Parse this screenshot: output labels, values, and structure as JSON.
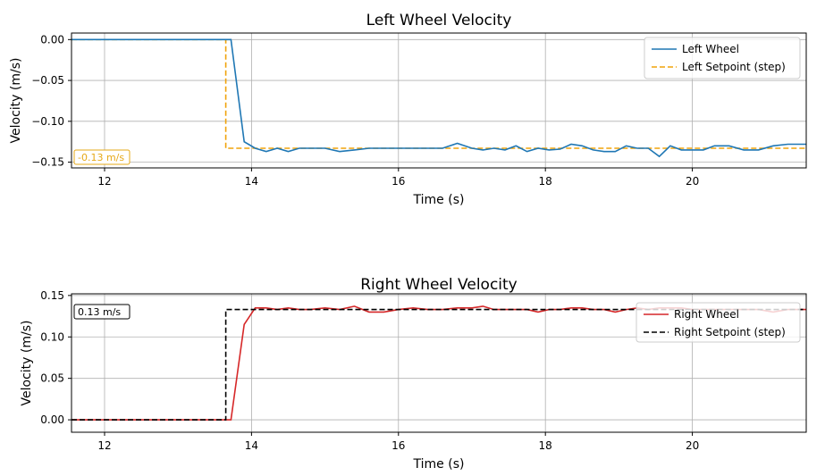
{
  "chart_data": [
    {
      "type": "line",
      "title": "Left Wheel Velocity",
      "xlabel": "Time (s)",
      "ylabel": "Velocity (m/s)",
      "xlim": [
        11.55,
        21.55
      ],
      "ylim": [
        -0.157,
        0.008
      ],
      "xticks": [
        12,
        14,
        16,
        18,
        20
      ],
      "yticks": [
        0.0,
        -0.05,
        -0.1,
        -0.15
      ],
      "ytick_labels": [
        "0.00",
        "−0.05",
        "−0.10",
        "−0.15"
      ],
      "xtick_labels": [
        "12",
        "14",
        "16",
        "18",
        "20"
      ],
      "grid": true,
      "legend_position": "top-right",
      "annotation": {
        "text": "-0.13 m/s",
        "color": "#e6a817",
        "position": "bottom-left"
      },
      "series": [
        {
          "name": "Left Wheel",
          "color": "#1f77b4",
          "style": "solid",
          "x": [
            11.55,
            13.72,
            13.9,
            14.05,
            14.2,
            14.35,
            14.5,
            14.65,
            14.8,
            15.0,
            15.2,
            15.4,
            15.6,
            15.8,
            16.0,
            16.2,
            16.4,
            16.6,
            16.8,
            17.0,
            17.15,
            17.3,
            17.45,
            17.6,
            17.75,
            17.9,
            18.05,
            18.2,
            18.35,
            18.5,
            18.65,
            18.8,
            18.95,
            19.1,
            19.25,
            19.4,
            19.55,
            19.7,
            19.85,
            20.0,
            20.15,
            20.3,
            20.5,
            20.7,
            20.9,
            21.1,
            21.3,
            21.55
          ],
          "y": [
            0.0,
            0.0,
            -0.125,
            -0.133,
            -0.137,
            -0.133,
            -0.137,
            -0.133,
            -0.133,
            -0.133,
            -0.137,
            -0.135,
            -0.133,
            -0.133,
            -0.133,
            -0.133,
            -0.133,
            -0.133,
            -0.127,
            -0.133,
            -0.135,
            -0.133,
            -0.135,
            -0.13,
            -0.137,
            -0.133,
            -0.135,
            -0.134,
            -0.128,
            -0.13,
            -0.135,
            -0.137,
            -0.137,
            -0.13,
            -0.133,
            -0.133,
            -0.143,
            -0.13,
            -0.135,
            -0.135,
            -0.135,
            -0.13,
            -0.13,
            -0.135,
            -0.135,
            -0.13,
            -0.128,
            -0.128
          ]
        },
        {
          "name": "Left Setpoint (step)",
          "color": "#f0a30a",
          "style": "dashed",
          "x": [
            11.55,
            13.65,
            13.65,
            21.55
          ],
          "y": [
            0.0,
            0.0,
            -0.133,
            -0.133
          ]
        }
      ]
    },
    {
      "type": "line",
      "title": "Right Wheel Velocity",
      "xlabel": "Time (s)",
      "ylabel": "Velocity (m/s)",
      "xlim": [
        11.55,
        21.55
      ],
      "ylim": [
        -0.015,
        0.152
      ],
      "xticks": [
        12,
        14,
        16,
        18,
        20
      ],
      "yticks": [
        0.0,
        0.05,
        0.1,
        0.15
      ],
      "ytick_labels": [
        "0.00",
        "0.05",
        "0.10",
        "0.15"
      ],
      "xtick_labels": [
        "12",
        "14",
        "16",
        "18",
        "20"
      ],
      "grid": true,
      "legend_position": "top-right",
      "annotation": {
        "text": "0.13 m/s",
        "color": "#000000",
        "position": "top-left"
      },
      "series": [
        {
          "name": "Right Wheel",
          "color": "#d62728",
          "style": "solid",
          "x": [
            11.55,
            13.72,
            13.9,
            14.05,
            14.2,
            14.35,
            14.5,
            14.65,
            14.8,
            15.0,
            15.2,
            15.4,
            15.6,
            15.8,
            16.0,
            16.2,
            16.4,
            16.6,
            16.8,
            17.0,
            17.15,
            17.3,
            17.45,
            17.6,
            17.75,
            17.9,
            18.05,
            18.2,
            18.35,
            18.5,
            18.65,
            18.8,
            18.95,
            19.1,
            19.25,
            19.4,
            19.55,
            19.7,
            19.85,
            20.0,
            20.15,
            20.3,
            20.5,
            20.7,
            20.9,
            21.1,
            21.3,
            21.55
          ],
          "y": [
            0.0,
            0.0,
            0.115,
            0.135,
            0.135,
            0.133,
            0.135,
            0.133,
            0.133,
            0.135,
            0.133,
            0.137,
            0.13,
            0.13,
            0.133,
            0.135,
            0.133,
            0.133,
            0.135,
            0.135,
            0.137,
            0.133,
            0.133,
            0.133,
            0.133,
            0.13,
            0.133,
            0.133,
            0.135,
            0.135,
            0.133,
            0.133,
            0.13,
            0.133,
            0.135,
            0.133,
            0.135,
            0.135,
            0.135,
            0.133,
            0.133,
            0.133,
            0.133,
            0.133,
            0.133,
            0.13,
            0.133,
            0.133
          ]
        },
        {
          "name": "Right Setpoint (step)",
          "color": "#000000",
          "style": "dashed",
          "x": [
            11.55,
            13.65,
            13.65,
            21.55
          ],
          "y": [
            0.0,
            0.0,
            0.133,
            0.133
          ]
        }
      ]
    }
  ]
}
